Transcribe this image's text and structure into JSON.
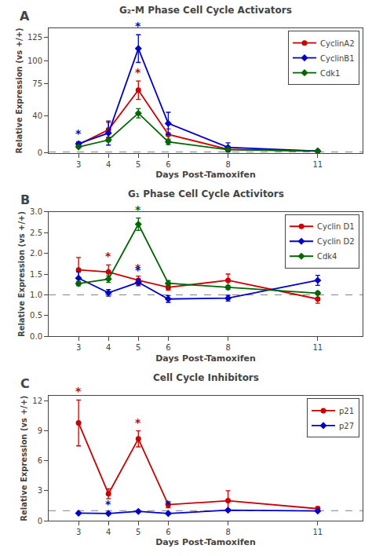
{
  "chart_data": [
    {
      "type": "line",
      "title": "G₂-M Phase Cell Cycle Activators",
      "xlabel": "Days Post-Tamoxifen",
      "ylabel": "Relative Expression (vs +/+)",
      "annotations": [
        "A"
      ],
      "x": [
        3,
        4,
        5,
        6,
        8,
        11
      ],
      "xlim": [
        2.0,
        12.5
      ],
      "xticks": [
        3,
        4,
        5,
        6,
        8,
        11
      ],
      "ylim": [
        0,
        135
      ],
      "yticks": [
        0,
        40,
        75,
        100,
        125
      ],
      "grid": false,
      "legend": "upper right",
      "hline": {
        "value": 1,
        "line_style": "dashed",
        "color": "gray"
      },
      "star_symbol": "*",
      "series": [
        {
          "name": "CyclinA2",
          "color": "#cc0000",
          "marker": "circle",
          "values": [
            9.0,
            25.0,
            68.0,
            20.0,
            4.0,
            2.0
          ],
          "errors": [
            1.5,
            8.0,
            10.0,
            6.0,
            2.0,
            0.5
          ],
          "stars": [
            null,
            null,
            5,
            null,
            null,
            null
          ]
        },
        {
          "name": "CyclinB1",
          "color": "#0000cc",
          "marker": "diamond",
          "values": [
            10.0,
            21.5,
            113.0,
            32.0,
            6.0,
            2.0
          ],
          "errors": [
            2.0,
            13.0,
            15.0,
            12.0,
            5.0,
            0.5
          ],
          "stars": [
            3,
            null,
            5,
            null,
            null,
            null
          ]
        },
        {
          "name": "Cdk1",
          "color": "#006600",
          "marker": "diamond",
          "values": [
            6.5,
            14.0,
            43.0,
            12.0,
            3.5,
            2.0
          ],
          "errors": [
            1.0,
            2.0,
            5.0,
            3.0,
            1.0,
            0.5
          ],
          "stars": [
            null,
            null,
            null,
            null,
            null,
            null
          ]
        }
      ]
    },
    {
      "type": "line",
      "title": "G₁ Phase Cell Cycle Activitors",
      "xlabel": "Days Post-Tamoxifen",
      "ylabel": "Relative Expression (vs +/+)",
      "annotations": [
        "B"
      ],
      "x": [
        3,
        4,
        5,
        6,
        8,
        11
      ],
      "xlim": [
        2.0,
        12.5
      ],
      "xticks": [
        3,
        4,
        5,
        6,
        8,
        11
      ],
      "ylim": [
        0,
        3.0
      ],
      "yticks": [
        {
          "value": 0,
          "label": "0.0"
        },
        0.5,
        {
          "value": 1.0,
          "label": "1.0"
        },
        1.5,
        {
          "value": 2.0,
          "label": "2.0"
        },
        2.5,
        {
          "value": 3.0,
          "label": "3.0"
        }
      ],
      "grid": false,
      "legend": "upper right",
      "hline": {
        "value": 1,
        "line_style": "dashed",
        "color": "gray"
      },
      "star_symbol": "*",
      "series": [
        {
          "name": "Cyclin D1",
          "color": "#cc0000",
          "marker": "circle",
          "values": [
            1.6,
            1.55,
            1.35,
            1.18,
            1.35,
            0.9
          ],
          "errors": [
            0.3,
            0.17,
            0.1,
            0.07,
            0.15,
            0.1
          ],
          "stars": [
            null,
            4,
            5,
            null,
            null,
            null
          ]
        },
        {
          "name": "Cyclin D2",
          "color": "#0000cc",
          "marker": "diamond",
          "values": [
            1.4,
            1.05,
            1.3,
            0.9,
            0.92,
            1.35
          ],
          "errors": [
            0.15,
            0.08,
            0.08,
            0.08,
            0.07,
            0.12
          ],
          "stars": [
            null,
            null,
            5,
            null,
            null,
            null
          ]
        },
        {
          "name": "Cdk4",
          "color": "#006600",
          "marker": "diamond",
          "values": [
            1.27,
            1.38,
            2.7,
            1.28,
            1.18,
            1.04
          ],
          "errors": [
            0.05,
            0.08,
            0.15,
            0.06,
            0.05,
            0.04
          ],
          "stars": [
            null,
            null,
            5,
            null,
            null,
            null
          ]
        }
      ]
    },
    {
      "type": "line",
      "title": "Cell Cycle Inhibitors",
      "xlabel": "Days Post-Tamoxifen",
      "ylabel": "Relative Expression (vs +/+)",
      "annotations": [
        "C"
      ],
      "x": [
        3,
        4,
        5,
        6,
        8,
        11
      ],
      "xlim": [
        2.0,
        12.5
      ],
      "xticks": [
        3,
        4,
        5,
        6,
        8,
        11
      ],
      "ylim": [
        0,
        12.5
      ],
      "yticks": [
        0,
        3,
        6,
        9,
        12
      ],
      "grid": false,
      "legend": "upper right",
      "hline": {
        "value": 1,
        "line_style": "dashed",
        "color": "gray"
      },
      "star_symbol": "*",
      "series": [
        {
          "name": "p21",
          "color": "#cc0000",
          "marker": "circle",
          "values": [
            9.8,
            2.7,
            8.2,
            1.6,
            2.0,
            1.2
          ],
          "errors": [
            2.3,
            0.5,
            0.8,
            0.3,
            1.0,
            0.2
          ],
          "stars": [
            3,
            null,
            5,
            null,
            null,
            null
          ]
        },
        {
          "name": "p27",
          "color": "#0000cc",
          "marker": "diamond",
          "values": [
            0.75,
            0.72,
            0.93,
            0.72,
            1.05,
            0.97
          ],
          "errors": [
            0.05,
            0.05,
            0.06,
            0.05,
            0.1,
            0.04
          ],
          "stars": [
            null,
            4,
            null,
            6,
            null,
            null
          ]
        }
      ]
    }
  ]
}
